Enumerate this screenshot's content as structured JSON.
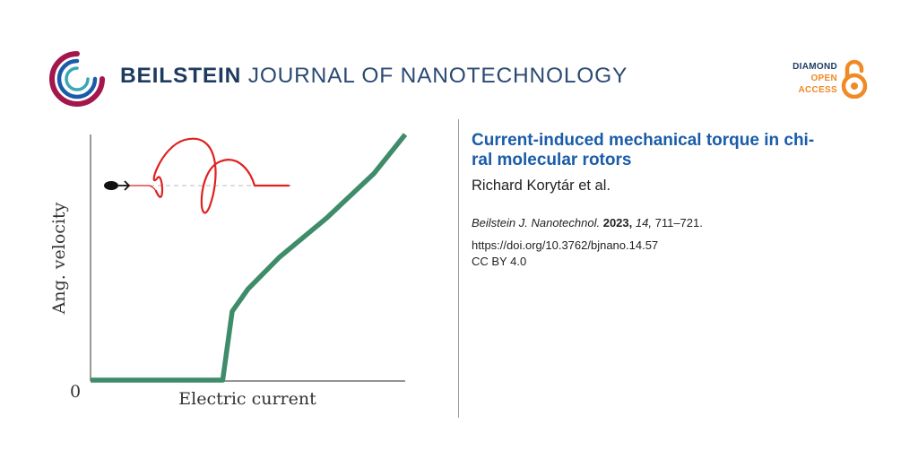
{
  "header": {
    "journal_bold": "BEILSTEIN",
    "journal_light": "JOURNAL OF NANOTECHNOLOGY",
    "logo_icon": "beilstein-ring-logo"
  },
  "open_access": {
    "line1": "DIAMOND",
    "line2": "OPEN",
    "line3": "ACCESS",
    "icon": "open-lock-icon"
  },
  "figure": {
    "ylabel": "Ang. velocity",
    "xlabel": "Electric current",
    "origin_label": "0"
  },
  "article": {
    "title_line1": "Current-induced mechanical torque in chi-",
    "title_line2": "ral molecular rotors",
    "authors": "Richard Korytár et al.",
    "journal_abbrev": "Beilstein J. Nanotechnol.",
    "year": "2023,",
    "volume": "14,",
    "pages": "711–721.",
    "doi": "https://doi.org/10.3762/bjnano.14.57",
    "license": "CC BY 4.0"
  },
  "colors": {
    "curve": "#3f8c6a",
    "helix": "#e02020",
    "title": "#1a5ca8",
    "oa_orange": "#f08a24",
    "navy": "#1d3a5f"
  },
  "chart_data": {
    "type": "line",
    "title": "",
    "xlabel": "Electric current",
    "ylabel": "Ang. velocity",
    "xlim": [
      0,
      1
    ],
    "ylim": [
      0,
      1
    ],
    "series": [
      {
        "name": "angular velocity",
        "x": [
          0,
          0.42,
          0.45,
          0.5,
          0.6,
          0.75,
          0.9,
          1.0
        ],
        "y": [
          0,
          0,
          0.28,
          0.37,
          0.5,
          0.66,
          0.84,
          1.0
        ]
      }
    ],
    "annotations": [
      "molecular rotor helix inset (top-left)"
    ]
  }
}
